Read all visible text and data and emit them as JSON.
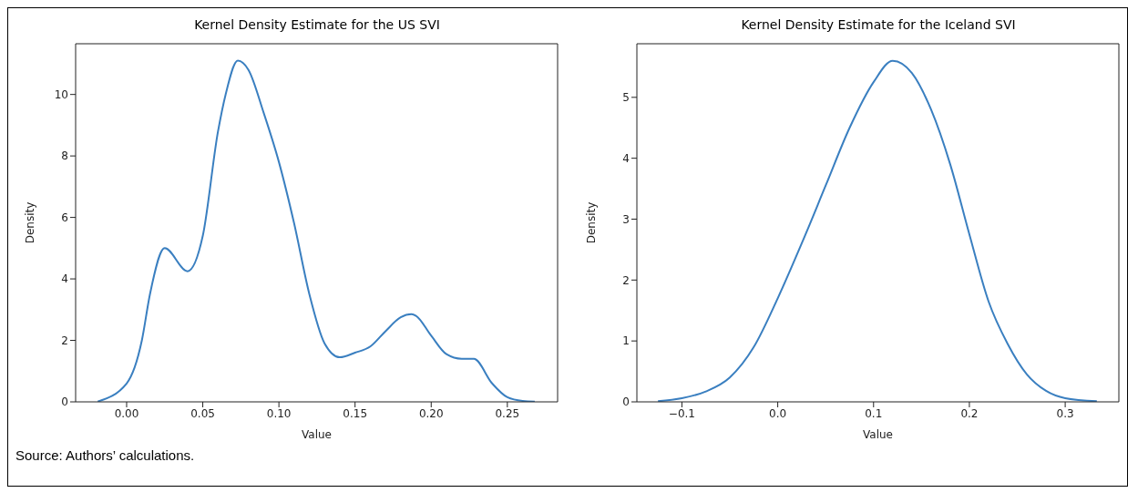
{
  "chart_data": [
    {
      "type": "line",
      "title": "Kernel Density Estimate for the US SVI",
      "xlabel": "Value",
      "ylabel": "Density",
      "x": [
        -0.019,
        0.0,
        0.01,
        0.0153,
        0.025,
        0.04,
        0.05,
        0.06,
        0.065,
        0.073,
        0.08,
        0.09,
        0.1,
        0.11,
        0.12,
        0.13,
        0.14,
        0.15,
        0.16,
        0.17,
        0.18,
        0.187,
        0.19,
        0.2,
        0.21,
        0.22,
        0.228,
        0.24,
        0.25,
        0.26,
        0.268
      ],
      "series": [
        {
          "color": "#3a7fc0",
          "values": [
            0.01,
            0.6,
            2.0,
            3.5,
            5.0,
            4.25,
            5.4,
            8.8,
            10.0,
            11.1,
            10.8,
            9.4,
            7.8,
            5.8,
            3.5,
            1.9,
            1.45,
            1.6,
            1.8,
            2.3,
            2.75,
            2.85,
            2.8,
            2.15,
            1.55,
            1.4,
            1.4,
            0.6,
            0.15,
            0.03,
            0.01
          ]
        }
      ],
      "xlim": [
        -0.0335,
        0.283
      ],
      "ylim": [
        0,
        11.65
      ],
      "xticks": [
        {
          "value": 0,
          "label": "0.00"
        },
        {
          "value": 0.05,
          "label": "0.05"
        },
        {
          "value": 0.1,
          "label": "0.10"
        },
        {
          "value": 0.15,
          "label": "0.15"
        },
        {
          "value": 0.2,
          "label": "0.20"
        },
        {
          "value": 0.25,
          "label": "0.25"
        }
      ],
      "yticks": [
        0,
        2,
        4,
        6,
        8,
        10
      ],
      "annotations": [
        "Source: Authors’ calculations."
      ]
    },
    {
      "type": "line",
      "title": "Kernel Density Estimate for the Iceland SVI",
      "xlabel": "Value",
      "ylabel": "Density",
      "x": [
        -0.125,
        -0.1,
        -0.075,
        -0.05,
        -0.025,
        0.0,
        0.025,
        0.05,
        0.075,
        0.1,
        0.12,
        0.14,
        0.16,
        0.18,
        0.2,
        0.22,
        0.24,
        0.26,
        0.28,
        0.3,
        0.333
      ],
      "series": [
        {
          "color": "#3a7fc0",
          "values": [
            0.01,
            0.06,
            0.17,
            0.4,
            0.9,
            1.7,
            2.6,
            3.55,
            4.5,
            5.25,
            5.6,
            5.4,
            4.8,
            3.9,
            2.75,
            1.65,
            0.95,
            0.45,
            0.18,
            0.06,
            0.01
          ]
        }
      ],
      "xlim": [
        -0.147,
        0.356
      ],
      "ylim": [
        0,
        5.88
      ],
      "xticks": [
        {
          "value": -0.1,
          "label": "−0.1"
        },
        {
          "value": 0,
          "label": "0.0"
        },
        {
          "value": 0.1,
          "label": "0.1"
        },
        {
          "value": 0.2,
          "label": "0.2"
        },
        {
          "value": 0.3,
          "label": "0.3"
        }
      ],
      "yticks": [
        0,
        1,
        2,
        3,
        4,
        5
      ]
    }
  ]
}
